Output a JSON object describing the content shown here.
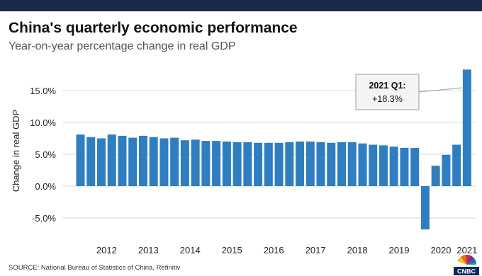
{
  "header": {
    "title": "China's quarterly economic performance",
    "subtitle": "Year-on-year percentage change in real GDP"
  },
  "footer": {
    "source": "SOURCE: National Bureau of Statistics of China, Refinitiv",
    "logo_text": "CNBC"
  },
  "colors": {
    "bar": "#2f7ec1",
    "grid": "#d8d8d8",
    "topbar": "#1b2a4a"
  },
  "chart_data": {
    "type": "bar",
    "ylabel": "Change in real GDP",
    "ylim": [
      -7.5,
      18.5
    ],
    "yticks": [
      -5,
      0,
      5,
      10,
      15
    ],
    "ytick_labels": [
      "-5.0%",
      "0.0%",
      "5.0%",
      "10.0%",
      "15.0%"
    ],
    "grid": true,
    "year_labels": [
      "2012",
      "2013",
      "2014",
      "2015",
      "2016",
      "2017",
      "2018",
      "2019",
      "2020",
      "2021"
    ],
    "categories": [
      "2011 Q4",
      "2012 Q1",
      "2012 Q2",
      "2012 Q3",
      "2012 Q4",
      "2013 Q1",
      "2013 Q2",
      "2013 Q3",
      "2013 Q4",
      "2014 Q1",
      "2014 Q2",
      "2014 Q3",
      "2014 Q4",
      "2015 Q1",
      "2015 Q2",
      "2015 Q3",
      "2015 Q4",
      "2016 Q1",
      "2016 Q2",
      "2016 Q3",
      "2016 Q4",
      "2017 Q1",
      "2017 Q2",
      "2017 Q3",
      "2017 Q4",
      "2018 Q1",
      "2018 Q2",
      "2018 Q3",
      "2018 Q4",
      "2019 Q1",
      "2019 Q2",
      "2019 Q3",
      "2019 Q4",
      "2020 Q1",
      "2020 Q2",
      "2020 Q3",
      "2020 Q4",
      "2021 Q1"
    ],
    "values": [
      8.1,
      7.7,
      7.5,
      8.1,
      7.9,
      7.6,
      7.9,
      7.7,
      7.5,
      7.6,
      7.2,
      7.3,
      7.1,
      7.1,
      7.0,
      6.9,
      6.9,
      6.8,
      6.8,
      6.8,
      6.9,
      7.0,
      7.0,
      6.9,
      6.8,
      6.9,
      6.9,
      6.7,
      6.5,
      6.4,
      6.2,
      6.0,
      6.0,
      -6.8,
      3.2,
      4.9,
      6.5,
      18.3
    ],
    "annotation": {
      "label": "2021 Q1:",
      "value": "+18.3%"
    }
  }
}
